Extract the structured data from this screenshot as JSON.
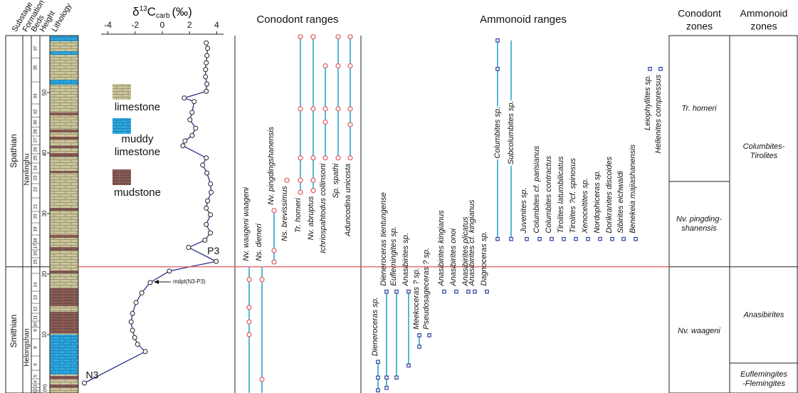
{
  "headers": {
    "substage": "Substage",
    "formation": "Formation",
    "beds": "Beds",
    "height": "Height",
    "lithology": "Lithology"
  },
  "substages": [
    "Spathian",
    "Smithian"
  ],
  "formations": [
    "Nanlinghu",
    "Helongshan"
  ],
  "beds": [
    "37",
    "35",
    "33",
    "32",
    "30",
    "28",
    "27",
    "26",
    "25",
    "24",
    "23",
    "22",
    "21",
    "20",
    "19",
    "18",
    "17",
    "16",
    "15",
    "14",
    "13",
    "12",
    "11",
    "10",
    "9",
    "8",
    "6",
    "5",
    "4",
    "3",
    "2",
    "1"
  ],
  "height_axis": {
    "ylim": [
      0,
      59.4
    ],
    "ticks": [
      10,
      20,
      30,
      40,
      50
    ],
    "unit": "(m)"
  },
  "boundary": 21.2,
  "lithology_legend": [
    [
      "limestone"
    ],
    [
      "muddy",
      "limestone"
    ],
    [
      "mudstone"
    ]
  ],
  "carbon": {
    "title": {
      "delta": "δ",
      "sup": "13",
      "base": "C",
      "sub": "carb",
      "unit": "(‰)"
    },
    "xlim": [
      -4.5,
      4.5
    ],
    "xticks": [
      -4,
      -2,
      0,
      2,
      4
    ],
    "color": "#2b2f8c",
    "delta": [
      3.23,
      3.33,
      3.28,
      3.23,
      3.18,
      3.18,
      3.28,
      3.23,
      1.61,
      2.34,
      2.19,
      2.03,
      2.45,
      2.19,
      1.67,
      1.51,
      3.23,
      2.97,
      3.28,
      3.54,
      3.59,
      3.33,
      3.23,
      3.54,
      3.23,
      3.54,
      3.13,
      1.93,
      3.96,
      0.52,
      -0.89,
      -1.51,
      -1.93,
      -2.19,
      -2.29,
      -2.19,
      -2.03,
      -1.82,
      -1.25,
      -5.73
    ],
    "height": [
      58.2,
      57.3,
      56.1,
      54.9,
      53.8,
      52.6,
      51.4,
      50.2,
      49.1,
      48.5,
      46.7,
      45.5,
      44.1,
      42.9,
      42.0,
      41.2,
      39.2,
      38.0,
      36.7,
      34.9,
      33.5,
      32.1,
      30.9,
      29.8,
      28.2,
      26.8,
      25.6,
      24.4,
      22.1,
      20.5,
      18.6,
      16.9,
      15.3,
      13.5,
      12.1,
      10.7,
      9.5,
      8.4,
      7.2,
      2.0
    ],
    "annotations": {
      "top": "P3",
      "bottom": "N3",
      "midpoint": "mdpt(N3-P3)"
    }
  },
  "conodonts": {
    "title": "Conodont ranges",
    "color": "#29a8cc",
    "marker_color": "#e0585a",
    "species": [
      {
        "name": "Nv. waageni waageni",
        "range": [
          0.4,
          21.2
        ],
        "occurrences": [
          19.1,
          14.5,
          12.1,
          10.0
        ]
      },
      {
        "name": "Ns. dieneri",
        "range": [
          0.4,
          21.2
        ],
        "occurrences": [
          19.1,
          2.6
        ]
      },
      {
        "name": "Nv. pingdingshanensis",
        "range": [
          22.0,
          30.5
        ],
        "occurrences": [
          30.5,
          23.9,
          22.0
        ]
      },
      {
        "name": "Ns. brevissimus",
        "occurrences": [
          35.5
        ]
      },
      {
        "name": "Tr. homeri",
        "range": [
          33.5,
          59.2
        ],
        "occurrences": [
          59.2,
          47.3,
          39.2,
          35.5,
          33.5
        ]
      },
      {
        "name": "Nv. abruptus",
        "range": [
          33.8,
          59.2
        ],
        "occurrences": [
          59.2,
          47.3,
          39.2,
          35.5,
          33.8
        ]
      },
      {
        "name": "Ichriospahtodus collinsoni",
        "range": [
          39.2,
          54.4
        ],
        "occurrences": [
          54.4,
          47.3,
          45.1,
          39.2
        ]
      },
      {
        "name": "Sp. spathi",
        "range": [
          39.2,
          59.2
        ],
        "occurrences": [
          59.2,
          54.4,
          47.3,
          39.2
        ]
      },
      {
        "name": "Aduncodina unicosta",
        "range": [
          39.2,
          59.2
        ],
        "occurrences": [
          59.2,
          54.4,
          47.3,
          44.7,
          39.2
        ]
      }
    ]
  },
  "ammonoids": {
    "title": "Ammonoid ranges",
    "color": "#29a8cc",
    "marker_color": "#2e3fa0",
    "species": [
      {
        "name": "Dieneroceras sp.",
        "range": [
          0.8,
          5.5
        ],
        "occurrences": [
          5.5,
          2.9,
          0.8
        ]
      },
      {
        "name": "Dieneroceras tientungense",
        "range": [
          1.2,
          17.1
        ],
        "occurrences": [
          17.1,
          2.9,
          1.2
        ]
      },
      {
        "name": "Euflemingites sp.",
        "range": [
          2.9,
          17.1
        ],
        "occurrences": [
          17.1,
          2.9
        ]
      },
      {
        "name": "Anasibirites sp.",
        "range": [
          4.9,
          17.1
        ],
        "occurrences": [
          17.1,
          4.9
        ]
      },
      {
        "name": "Meekoceras ? sp.",
        "range": [
          8.0,
          9.9
        ],
        "occurrences": [
          9.9,
          8.0
        ]
      },
      {
        "name": "Pseudosageceras ? sp.",
        "occurrences": [
          9.9
        ]
      },
      {
        "name": "Anasibirites kingianus",
        "occurrences": [
          17.1
        ]
      },
      {
        "name": "Anasibirites onoi",
        "occurrences": [
          17.1
        ]
      },
      {
        "name": "Anasibirites plicatus",
        "occurrences": [
          17.1
        ]
      },
      {
        "name": "Anasibirites cf. kingianus",
        "occurrences": [
          17.1
        ]
      },
      {
        "name": "Dagnoceras sp.",
        "occurrences": [
          17.1
        ]
      },
      {
        "name": "Columbites sp.",
        "range": [
          25.8,
          58.6
        ],
        "occurrences": [
          58.6,
          53.9,
          25.8
        ]
      },
      {
        "name": "Subcolumbites sp.",
        "range": [
          25.8,
          58.6
        ],
        "occurrences": [
          25.8
        ]
      },
      {
        "name": "Juvenites sp.",
        "occurrences": [
          25.8
        ]
      },
      {
        "name": "Columbites cf. parisianus",
        "occurrences": [
          25.8
        ]
      },
      {
        "name": "Columbites contractus",
        "occurrences": [
          25.8
        ]
      },
      {
        "name": "Tirolites latumbilicatus",
        "occurrences": [
          25.8
        ]
      },
      {
        "name": "Tirolites ?cf. spinosus",
        "occurrences": [
          25.8
        ]
      },
      {
        "name": "Xenoceltites sp.",
        "occurrences": [
          25.8
        ]
      },
      {
        "name": "Nordophiceras sp.",
        "occurrences": [
          25.8
        ]
      },
      {
        "name": "Dorikranites discoides",
        "occurrences": [
          25.8
        ]
      },
      {
        "name": "Sibirites eichwaldi",
        "occurrences": [
          25.8
        ]
      },
      {
        "name": "Benekeia majiashanensis",
        "occurrences": [
          25.8
        ]
      },
      {
        "name": "Leiophyllites sp.",
        "occurrences": [
          53.9
        ]
      },
      {
        "name": "Hellenites compressus",
        "occurrences": [
          53.9
        ]
      }
    ]
  },
  "conodont_zones": {
    "title": [
      "Conodont",
      "zones"
    ],
    "zones": [
      {
        "lines": [
          "Tr. homeri"
        ],
        "range": [
          35.3,
          59.4
        ]
      },
      {
        "lines": [
          "Nv. pingding-",
          "shanensis"
        ],
        "range": [
          21.2,
          35.3
        ]
      },
      {
        "lines": [
          "Nv. waageni"
        ],
        "range": [
          0,
          21.2
        ]
      }
    ]
  },
  "ammonoid_zones": {
    "title": [
      "Ammonoid",
      "zones"
    ],
    "zones": [
      {
        "lines": [
          "Columbites-",
          "Tirolites"
        ],
        "range": [
          21.2,
          59.4
        ]
      },
      {
        "lines": [
          "Anasibirites"
        ],
        "range": [
          5.3,
          21.2
        ]
      },
      {
        "lines": [
          "Euflemingites",
          "-Flemingites"
        ],
        "range": [
          0,
          5.3
        ]
      }
    ]
  }
}
